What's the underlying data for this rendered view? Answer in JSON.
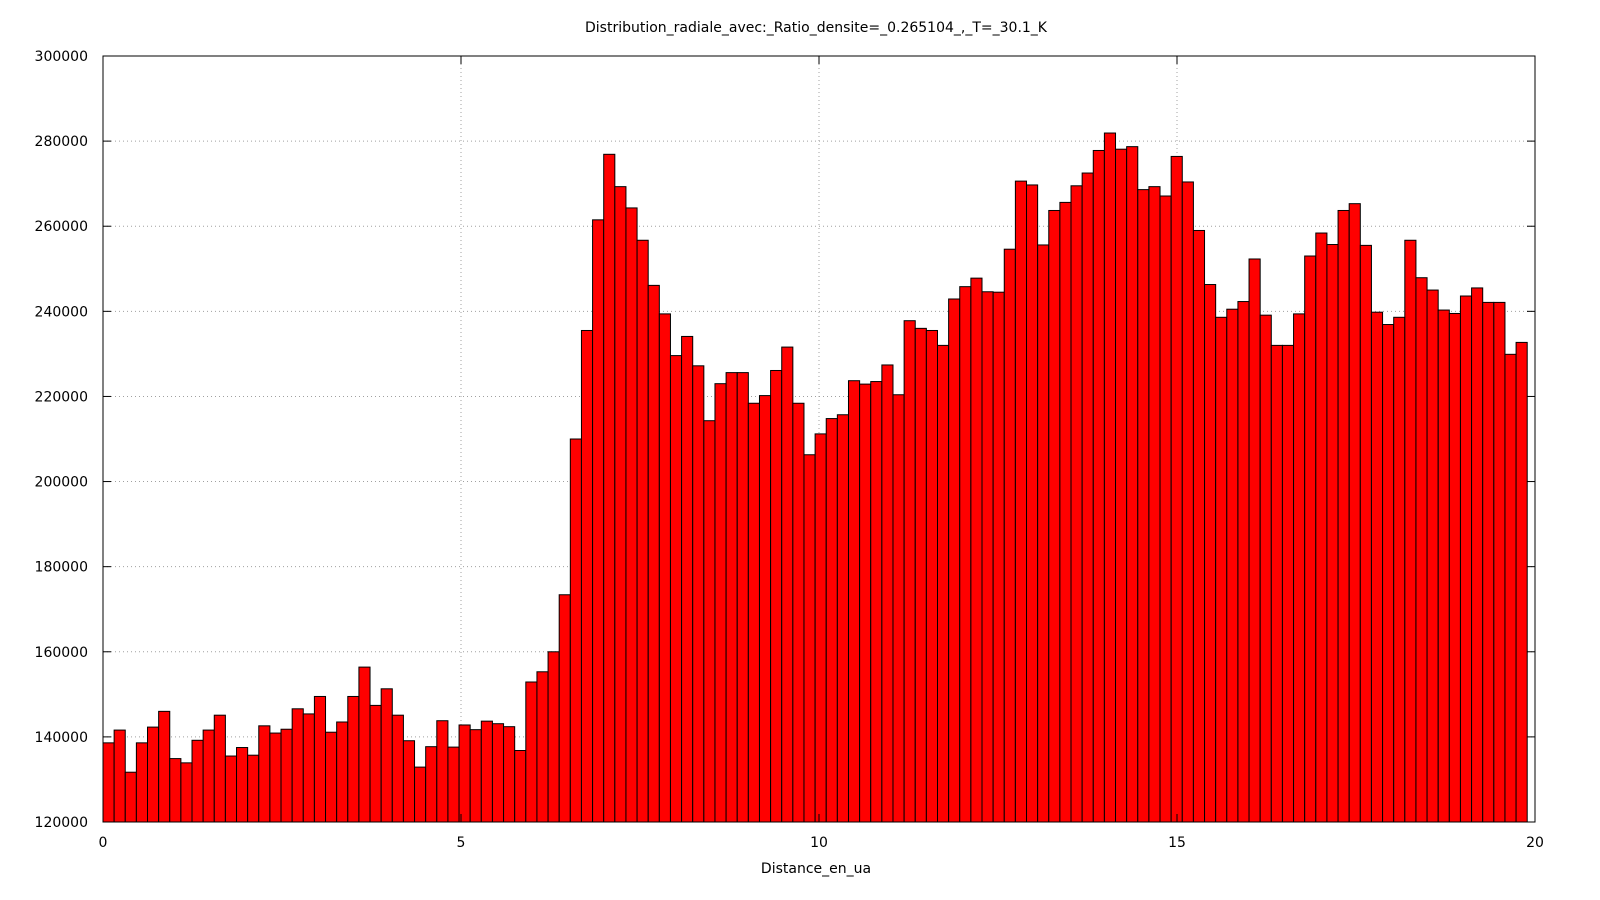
{
  "chart_data": {
    "type": "bar",
    "title": "Distribution_radiale_avec:_Ratio_densite=_0.265104_,_T=_30.1_K",
    "xlabel": "Distance_en_ua",
    "ylabel": "",
    "xlim": [
      0,
      20
    ],
    "ylim": [
      120000,
      300000
    ],
    "x_ticks": [
      0,
      5,
      10,
      15,
      20
    ],
    "y_ticks": [
      120000,
      140000,
      160000,
      180000,
      200000,
      220000,
      240000,
      260000,
      280000,
      300000
    ],
    "grid": true,
    "bar_color": "#ff0000",
    "bar_edge_color": "#000000",
    "bin_width": 0.1554,
    "values": [
      138600,
      141600,
      131700,
      138600,
      142300,
      146000,
      134900,
      133900,
      139200,
      141600,
      145100,
      135500,
      137500,
      135700,
      142600,
      140900,
      141800,
      146600,
      145400,
      149500,
      141100,
      143500,
      149500,
      156400,
      147400,
      151300,
      145100,
      139100,
      132900,
      137700,
      143800,
      137600,
      142800,
      141700,
      143700,
      143100,
      142400,
      136800,
      152900,
      155300,
      160000,
      173400,
      210000,
      235500,
      261500,
      276900,
      269300,
      264300,
      256700,
      246100,
      239400,
      229600,
      234100,
      227200,
      214300,
      223000,
      225600,
      225600,
      218400,
      220200,
      226100,
      231600,
      218400,
      206300,
      211200,
      214800,
      215700,
      223700,
      222900,
      223500,
      227400,
      220400,
      237800,
      236000,
      235500,
      232000,
      242900,
      245800,
      247800,
      244600,
      244500,
      254600,
      270600,
      269700,
      255600,
      263700,
      265600,
      269500,
      272500,
      277800,
      281900,
      278100,
      278700,
      268600,
      269300,
      267100,
      276400,
      270400,
      259000,
      246300,
      238600,
      240500,
      242300,
      252300,
      239100,
      232000,
      232000,
      239400,
      253000,
      258400,
      255700,
      263700,
      265300,
      255500,
      239800,
      236900,
      238600,
      256700,
      247900,
      245000,
      240300,
      239500,
      243600,
      245500,
      242100,
      242100,
      229900,
      232700
    ]
  }
}
